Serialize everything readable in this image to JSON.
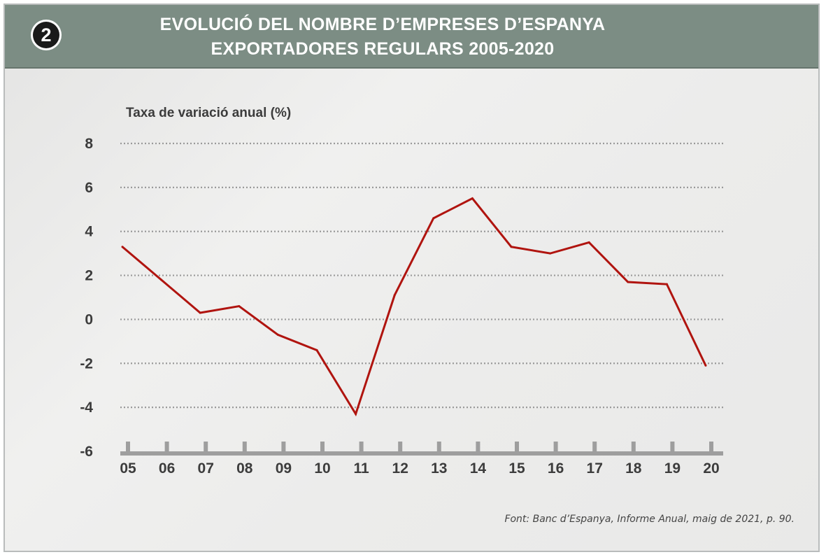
{
  "header": {
    "badge": "2",
    "title_line1": "EVOLUCIÓ DEL NOMBRE D’EMPRESES D’ESPANYA",
    "title_line2": "EXPORTADORES REGULARS 2005-2020"
  },
  "source": "Font: Banc d’Espanya, Informe Anual, maig de 2021, p. 90.",
  "colors": {
    "header_bg": "#7c8d84",
    "line": "#b0140f",
    "grid": "#9a9a9a",
    "axis": "#9e9e9e",
    "text": "#3c3c3c"
  },
  "chart_data": {
    "type": "line",
    "ylabel": "Taxa de variació anual (%)",
    "xlabel": "",
    "categories": [
      "05",
      "06",
      "07",
      "08",
      "09",
      "10",
      "11",
      "12",
      "13",
      "14",
      "15",
      "16",
      "17",
      "18",
      "19",
      "20"
    ],
    "values": [
      3.3,
      1.8,
      0.3,
      0.6,
      -0.7,
      -1.4,
      -4.3,
      1.1,
      4.6,
      5.5,
      3.3,
      3.0,
      3.5,
      1.7,
      1.6,
      -2.1
    ],
    "ylim": [
      -6,
      8
    ],
    "yticks": [
      8,
      6,
      4,
      2,
      0,
      -2,
      -4,
      -6
    ],
    "grid": true,
    "grid_style": "dotted horizontal"
  }
}
